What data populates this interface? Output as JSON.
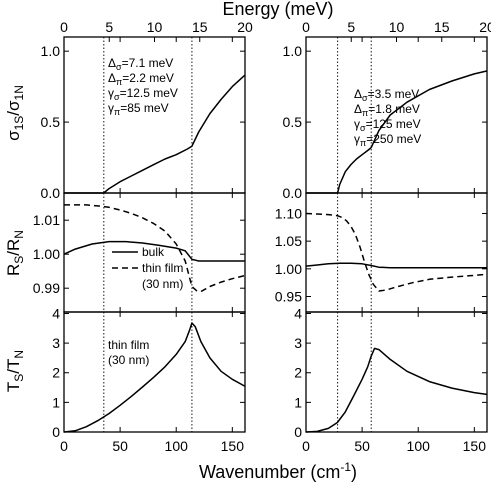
{
  "chart_data": {
    "type": "line",
    "top_axis": {
      "label": "Energy (meV)",
      "ticks": [
        "0",
        "5",
        "10",
        "15",
        "20"
      ],
      "range": [
        0,
        20
      ]
    },
    "bottom_axis": {
      "label": "Wavenumber (cm-1)",
      "ticks": [
        "0",
        "50",
        "100",
        "150"
      ],
      "range": [
        0,
        161.3
      ]
    },
    "gap_markers": {
      "left": {
        "x": [
          35.5,
          114
        ]
      },
      "right": {
        "x": [
          28.2,
          58.1
        ]
      }
    },
    "rows": [
      {
        "ylabel": "σ1S/σ1N",
        "yticks_left": [
          "0.0",
          "0.5",
          "1.0"
        ],
        "yticks_right": [
          "0.0",
          "0.5",
          "1.0"
        ],
        "ylim": [
          0,
          1.1
        ],
        "left_annotation": [
          "Δσ=7.1 meV",
          "Δπ=2.2 meV",
          "γσ=12.5 meV",
          "γπ=85 meV"
        ],
        "right_annotation": [
          "Δσ=3.5 meV",
          "Δπ=1.8 meV",
          "γσ=125 meV",
          "γπ=250 meV"
        ],
        "left_series": [
          {
            "name": "",
            "style": "solid",
            "x": [
              0,
              35.5,
              40,
              50,
              60,
              70,
              80,
              90,
              100,
              110,
              114,
              120,
              130,
              140,
              150,
              161
            ],
            "y": [
              0,
              0,
              0.03,
              0.08,
              0.12,
              0.16,
              0.2,
              0.24,
              0.27,
              0.31,
              0.33,
              0.43,
              0.56,
              0.66,
              0.75,
              0.83
            ]
          }
        ],
        "right_series": [
          {
            "name": "",
            "style": "solid",
            "x": [
              0,
              28.2,
              30,
              35,
              40,
              45,
              50,
              55,
              58.1,
              65,
              75,
              90,
              110,
              130,
              150,
              161
            ],
            "y": [
              0,
              0,
              0.06,
              0.15,
              0.2,
              0.24,
              0.27,
              0.3,
              0.32,
              0.44,
              0.55,
              0.64,
              0.73,
              0.79,
              0.84,
              0.86
            ]
          }
        ]
      },
      {
        "ylabel": "RS/RN",
        "yticks_left": [
          "0.99",
          "1.00",
          "1.01"
        ],
        "yticks_right": [
          "0.95",
          "1.00",
          "1.05",
          "1.10"
        ],
        "ylim_left": [
          0.983,
          1.018
        ],
        "ylim_right": [
          0.922,
          1.137
        ],
        "legend": [
          "bulk",
          "thin film",
          "(30 nm)"
        ],
        "left_series": [
          {
            "name": "bulk",
            "style": "solid",
            "x": [
              0,
              10,
              25,
              40,
              55,
              70,
              85,
              100,
              108,
              114,
              120,
              130,
              145,
              161
            ],
            "y": [
              1.0,
              1.0015,
              1.003,
              1.0037,
              1.0037,
              1.0033,
              1.0026,
              1.0018,
              1.001,
              0.9985,
              0.998,
              0.998,
              0.998,
              0.998
            ]
          },
          {
            "name": "thin film",
            "style": "dashed",
            "x": [
              0,
              10,
              20,
              30,
              40,
              50,
              60,
              70,
              80,
              90,
              100,
              108,
              114,
              118,
              122,
              130,
              140,
              150,
              161
            ],
            "y": [
              1.0145,
              1.0145,
              1.0145,
              1.0142,
              1.0138,
              1.013,
              1.012,
              1.0107,
              1.009,
              1.0068,
              1.003,
              0.998,
              0.9905,
              0.9893,
              0.989,
              0.9905,
              0.9918,
              0.9928,
              0.9937
            ]
          }
        ],
        "right_series": [
          {
            "name": "bulk",
            "style": "solid",
            "x": [
              0,
              10,
              20,
              30,
              40,
              50,
              58,
              65,
              75,
              90,
              110,
              130,
              161
            ],
            "y": [
              1.005,
              1.007,
              1.009,
              1.01,
              1.01,
              1.009,
              1.006,
              1.003,
              1.002,
              1.002,
              1.002,
              1.002,
              1.002
            ]
          },
          {
            "name": "thin film",
            "style": "dashed",
            "x": [
              0,
              10,
              20,
              28,
              32,
              36,
              40,
              44,
              48,
              52,
              56,
              60,
              65,
              72,
              80,
              95,
              110,
              130,
              161
            ],
            "y": [
              1.1,
              1.099,
              1.098,
              1.096,
              1.093,
              1.087,
              1.077,
              1.062,
              1.04,
              1.013,
              0.99,
              0.972,
              0.96,
              0.962,
              0.967,
              0.975,
              0.981,
              0.985,
              0.99
            ]
          }
        ]
      },
      {
        "ylabel": "TS/TN",
        "yticks_left": [
          "0",
          "1",
          "2",
          "3",
          "4"
        ],
        "yticks_right": [
          "0",
          "1",
          "2",
          "3",
          "4"
        ],
        "ylim": [
          0,
          4.05
        ],
        "left_annotation": [
          "thin film",
          "(30 nm)"
        ],
        "left_series": [
          {
            "name": "thin film",
            "style": "solid",
            "x": [
              0,
              10,
              20,
              30,
              40,
              50,
              60,
              70,
              80,
              90,
              100,
              108,
              112,
              114,
              117,
              122,
              130,
              140,
              150,
              161
            ],
            "y": [
              0,
              0.04,
              0.18,
              0.38,
              0.62,
              0.9,
              1.2,
              1.52,
              1.85,
              2.2,
              2.62,
              3.05,
              3.45,
              3.68,
              3.55,
              3.05,
              2.5,
              2.05,
              1.78,
              1.55
            ]
          }
        ],
        "right_series": [
          {
            "name": "thin film",
            "style": "solid",
            "x": [
              0,
              10,
              20,
              28,
              35,
              42,
              50,
              55,
              58,
              61,
              65,
              75,
              90,
              110,
              130,
              150,
              161
            ],
            "y": [
              0,
              0.02,
              0.12,
              0.32,
              0.68,
              1.18,
              1.78,
              2.2,
              2.55,
              2.82,
              2.78,
              2.45,
              2.05,
              1.7,
              1.48,
              1.33,
              1.27
            ]
          }
        ]
      }
    ]
  }
}
